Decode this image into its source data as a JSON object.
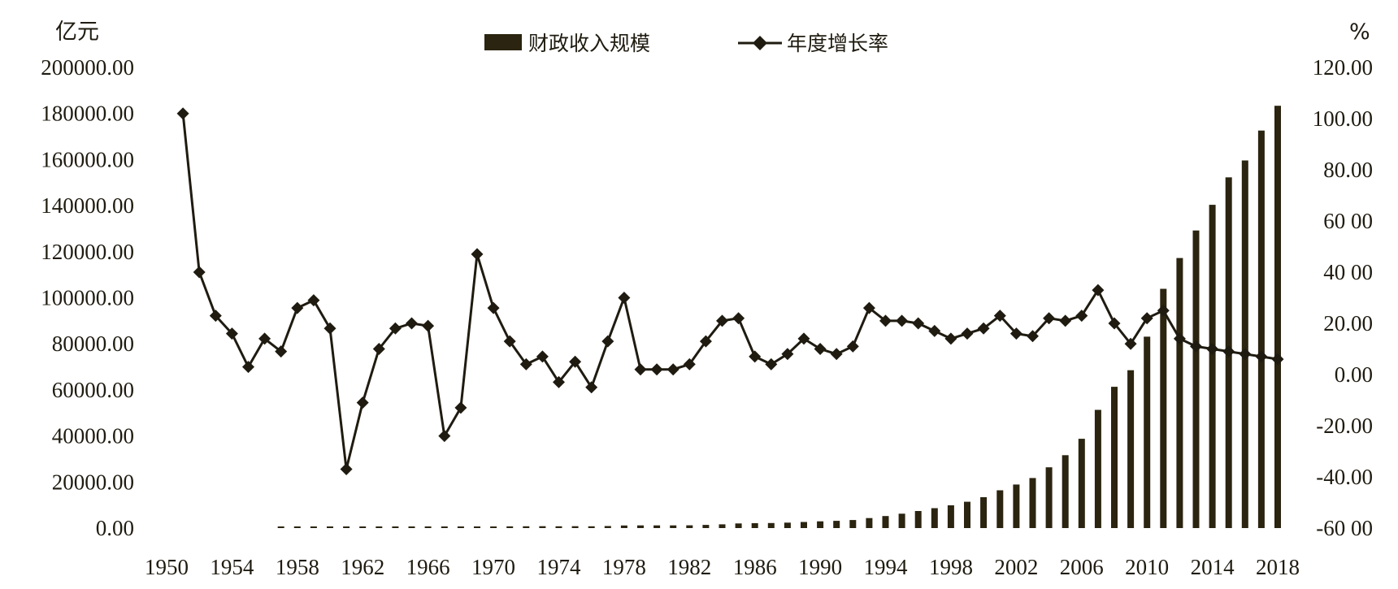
{
  "chart_data": {
    "type": "bar+line",
    "left_axis_unit": "亿元",
    "right_axis_unit": "%",
    "left_ylim": [
      0,
      200000
    ],
    "right_ylim": [
      -60,
      120
    ],
    "left_ticks": [
      "200000.00",
      "180000.00",
      "160000.00",
      "140000.00",
      "120000.00",
      "100000.00",
      "80000.00",
      "60000.00",
      "40000.00",
      "20000.00",
      "0.00"
    ],
    "right_ticks": [
      "120.00",
      "100.00",
      "80.00",
      "60 00",
      "40 00",
      "20.00",
      "0.00",
      "-20.00",
      "-40.00",
      "-60 00"
    ],
    "x_ticks": [
      "1950",
      "1954",
      "1958",
      "1962",
      "1966",
      "1970",
      "1974",
      "1978",
      "1982",
      "1986",
      "1990",
      "1994",
      "1998",
      "2002",
      "2006",
      "2010",
      "2014",
      "2018"
    ],
    "legend_position": "top-center",
    "series": [
      {
        "name": "财政收入规模",
        "kind": "bar",
        "color": "#2a2410",
        "x": [
          1957,
          1958,
          1959,
          1960,
          1961,
          1962,
          1963,
          1964,
          1965,
          1966,
          1967,
          1968,
          1969,
          1970,
          1971,
          1972,
          1973,
          1974,
          1975,
          1976,
          1977,
          1978,
          1979,
          1980,
          1981,
          1982,
          1983,
          1984,
          1985,
          1986,
          1987,
          1988,
          1989,
          1990,
          1991,
          1992,
          1993,
          1994,
          1995,
          1996,
          1997,
          1998,
          1999,
          2000,
          2001,
          2002,
          2003,
          2004,
          2005,
          2006,
          2007,
          2008,
          2009,
          2010,
          2011,
          2012,
          2013,
          2014,
          2015,
          2016,
          2017,
          2018
        ],
        "values": [
          300,
          380,
          480,
          570,
          350,
          310,
          340,
          400,
          470,
          560,
          420,
          360,
          530,
          660,
          740,
          770,
          810,
          780,
          810,
          780,
          870,
          1130,
          1150,
          1160,
          1180,
          1210,
          1370,
          1640,
          2000,
          2120,
          2200,
          2360,
          2660,
          2940,
          3150,
          3480,
          4350,
          5220,
          6240,
          7410,
          8650,
          9880,
          11440,
          13400,
          16390,
          18900,
          21720,
          26400,
          31650,
          38760,
          51320,
          61330,
          68520,
          83100,
          103870,
          117250,
          129210,
          140370,
          152270,
          159600,
          172590,
          183360
        ]
      },
      {
        "name": "年度增长率",
        "kind": "line",
        "color": "#1f1b10",
        "x": [
          1951,
          1952,
          1953,
          1954,
          1955,
          1956,
          1957,
          1958,
          1959,
          1960,
          1961,
          1962,
          1963,
          1964,
          1965,
          1966,
          1967,
          1968,
          1969,
          1970,
          1971,
          1972,
          1973,
          1974,
          1975,
          1976,
          1977,
          1978,
          1979,
          1980,
          1981,
          1982,
          1983,
          1984,
          1985,
          1986,
          1987,
          1988,
          1989,
          1990,
          1991,
          1992,
          1993,
          1994,
          1995,
          1996,
          1997,
          1998,
          1999,
          2000,
          2001,
          2002,
          2003,
          2004,
          2005,
          2006,
          2007,
          2008,
          2009,
          2010,
          2011,
          2012,
          2013,
          2014,
          2015,
          2016,
          2017,
          2018
        ],
        "values": [
          102,
          40,
          23,
          16,
          3,
          14,
          9,
          26,
          29,
          18,
          -37,
          -11,
          10,
          18,
          20,
          19,
          -24,
          -13,
          47,
          26,
          13,
          4,
          7,
          -3,
          5,
          -5,
          13,
          30,
          2,
          2,
          2,
          4,
          13,
          21,
          22,
          7,
          4,
          8,
          14,
          10,
          8,
          11,
          26,
          21,
          21,
          20,
          17,
          14,
          16,
          18,
          23,
          16,
          15,
          22,
          21,
          23,
          33,
          20,
          12,
          22,
          25,
          14,
          11,
          10,
          9,
          8,
          7,
          6
        ]
      }
    ]
  }
}
